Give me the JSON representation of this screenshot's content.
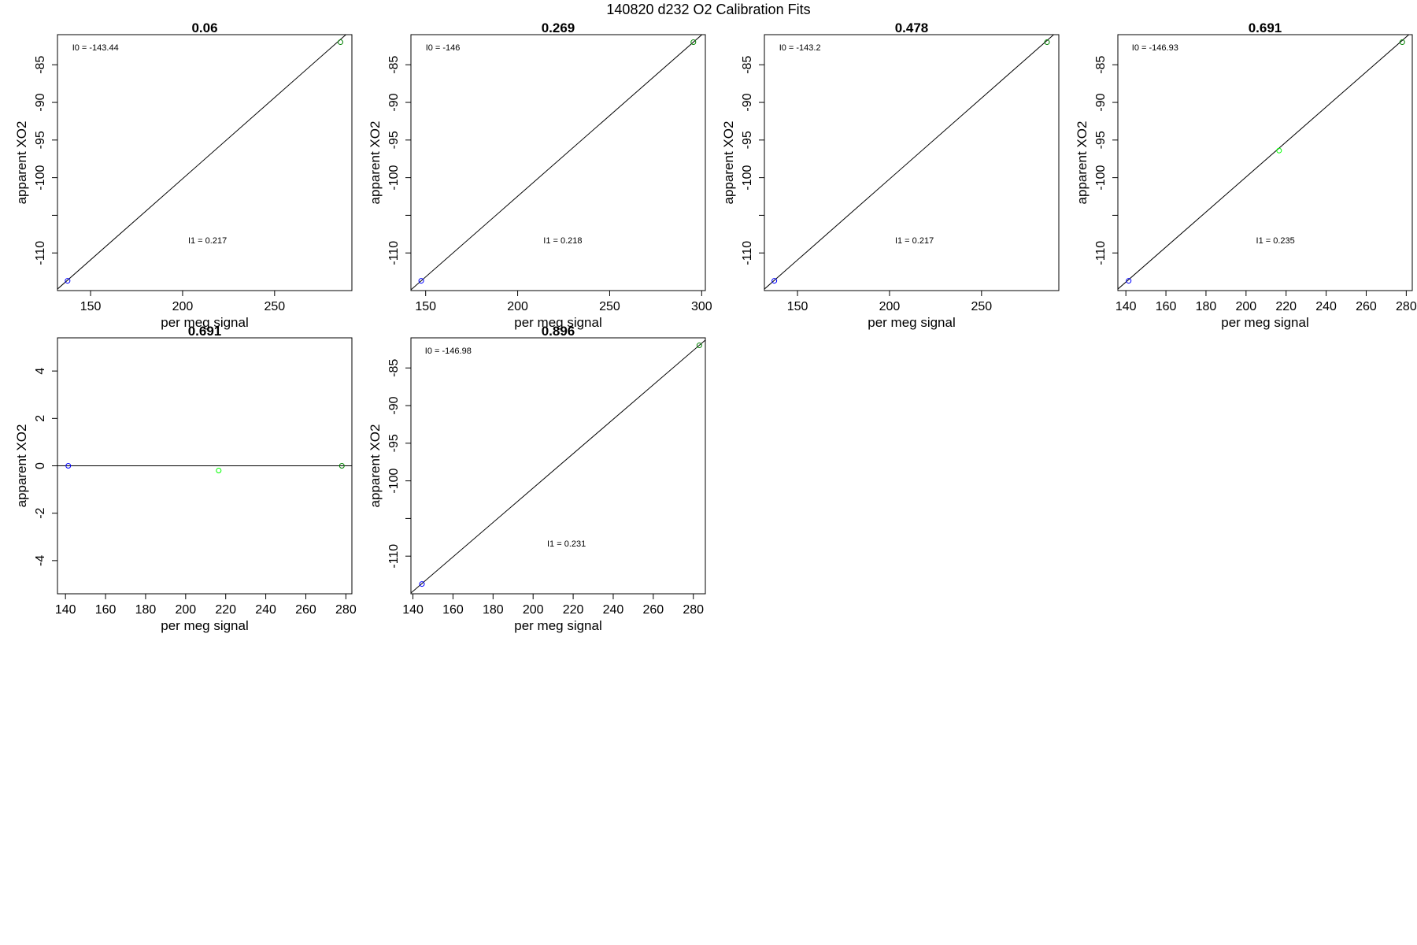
{
  "figure": {
    "title": "140820   d232   O2 Calibration Fits"
  },
  "chart_data": [
    {
      "type": "scatter",
      "title": "0.06",
      "xlabel": "per meg signal",
      "ylabel": "apparent XO2",
      "xlim": [
        132,
        292
      ],
      "ylim": [
        -115,
        -81
      ],
      "xticks": [
        150,
        200,
        250
      ],
      "yticks": [
        -85,
        -90,
        -95,
        -100,
        -110
      ],
      "extra_yticks": [
        -105
      ],
      "points": [
        {
          "x": 137.5,
          "y": -113.7,
          "color": "#0000ff"
        },
        {
          "x": 285.8,
          "y": -82.0,
          "color": "#008000"
        }
      ],
      "fit_line": [
        [
          132,
          -114.8
        ],
        [
          292,
          -80.3
        ]
      ],
      "annotations": [
        {
          "text": "I0 =  -143.44",
          "x": 140,
          "y": -83.1
        },
        {
          "text": "I1 =  0.217",
          "x": 203,
          "y": -108.7
        }
      ]
    },
    {
      "type": "scatter",
      "title": "0.269",
      "xlabel": "per meg signal",
      "ylabel": "apparent XO2",
      "xlim": [
        142,
        302
      ],
      "ylim": [
        -115,
        -81
      ],
      "xticks": [
        150,
        200,
        250,
        300
      ],
      "yticks": [
        -85,
        -90,
        -95,
        -100,
        -110
      ],
      "extra_yticks": [
        -105
      ],
      "points": [
        {
          "x": 147.6,
          "y": -113.7,
          "color": "#0000ff"
        },
        {
          "x": 295.5,
          "y": -82.0,
          "color": "#008000"
        }
      ],
      "fit_line": [
        [
          142,
          -114.9
        ],
        [
          302,
          -80.6
        ]
      ],
      "annotations": [
        {
          "text": "I0 =  -146",
          "x": 150,
          "y": -83.1
        },
        {
          "text": "I1 =  0.218",
          "x": 214,
          "y": -108.7
        }
      ]
    },
    {
      "type": "scatter",
      "title": "0.478",
      "xlabel": "per meg signal",
      "ylabel": "apparent XO2",
      "xlim": [
        132,
        292
      ],
      "ylim": [
        -115,
        -81
      ],
      "xticks": [
        150,
        200,
        250
      ],
      "yticks": [
        -85,
        -90,
        -95,
        -100,
        -110
      ],
      "extra_yticks": [
        -105
      ],
      "points": [
        {
          "x": 137.4,
          "y": -113.7,
          "color": "#0000ff"
        },
        {
          "x": 285.6,
          "y": -82.0,
          "color": "#008000"
        }
      ],
      "fit_line": [
        [
          132,
          -114.8
        ],
        [
          292,
          -80.4
        ]
      ],
      "annotations": [
        {
          "text": "I0 =  -143.2",
          "x": 140,
          "y": -83.1
        },
        {
          "text": "I1 =  0.217",
          "x": 203,
          "y": -108.7
        }
      ]
    },
    {
      "type": "scatter",
      "title": "0.691",
      "xlabel": "per meg signal",
      "ylabel": "apparent XO2",
      "xlim": [
        136,
        283
      ],
      "ylim": [
        -115,
        -81
      ],
      "xticks": [
        140,
        160,
        180,
        200,
        220,
        240,
        260,
        280
      ],
      "yticks": [
        -85,
        -90,
        -95,
        -100,
        -110
      ],
      "extra_yticks": [
        -105
      ],
      "points": [
        {
          "x": 141.4,
          "y": -113.7,
          "color": "#0000ff"
        },
        {
          "x": 216.5,
          "y": -96.4,
          "color": "#00ff00"
        },
        {
          "x": 278.0,
          "y": -82.0,
          "color": "#008000"
        }
      ],
      "fit_line": [
        [
          136,
          -114.8
        ],
        [
          283,
          -80.6
        ]
      ],
      "annotations": [
        {
          "text": "I0 =  -146.93",
          "x": 143,
          "y": -83.1
        },
        {
          "text": "I1 =  0.235",
          "x": 205,
          "y": -108.7
        }
      ]
    },
    {
      "type": "scatter",
      "title": "0.691",
      "xlabel": "per meg signal",
      "ylabel": "apparent XO2",
      "xlim": [
        136,
        283
      ],
      "ylim": [
        -5.4,
        5.4
      ],
      "xticks": [
        140,
        160,
        180,
        200,
        220,
        240,
        260,
        280
      ],
      "yticks": [
        4,
        2,
        0,
        -2,
        -4
      ],
      "extra_yticks": [],
      "points": [
        {
          "x": 141.4,
          "y": 0.0,
          "color": "#0000ff"
        },
        {
          "x": 216.5,
          "y": -0.2,
          "color": "#00ff00"
        },
        {
          "x": 278.0,
          "y": 0.0,
          "color": "#008000"
        }
      ],
      "fit_line": [
        [
          136,
          0
        ],
        [
          283,
          0
        ]
      ],
      "annotations": []
    },
    {
      "type": "scatter",
      "title": "0.896",
      "xlabel": "per meg signal",
      "ylabel": "apparent XO2",
      "xlim": [
        139,
        286
      ],
      "ylim": [
        -115,
        -81
      ],
      "xticks": [
        140,
        160,
        180,
        200,
        220,
        240,
        260,
        280
      ],
      "yticks": [
        -85,
        -90,
        -95,
        -100,
        -110
      ],
      "extra_yticks": [
        -105
      ],
      "points": [
        {
          "x": 144.5,
          "y": -113.7,
          "color": "#0000ff"
        },
        {
          "x": 283.0,
          "y": -82.0,
          "color": "#008000"
        }
      ],
      "fit_line": [
        [
          139,
          -114.9
        ],
        [
          286,
          -81.3
        ]
      ],
      "annotations": [
        {
          "text": "I0 =  -146.98",
          "x": 146,
          "y": -83.1
        },
        {
          "text": "I1 =  0.231",
          "x": 207,
          "y": -108.7
        }
      ]
    }
  ]
}
